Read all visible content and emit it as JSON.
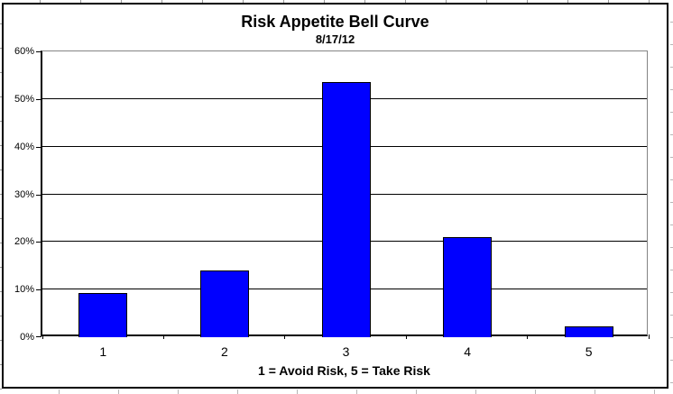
{
  "chart_data": {
    "type": "bar",
    "title": "Risk Appetite Bell Curve",
    "subtitle": "8/17/12",
    "xlabel": "1 = Avoid Risk, 5 = Take Risk",
    "ylabel": "",
    "categories": [
      "1",
      "2",
      "3",
      "4",
      "5"
    ],
    "values": [
      9.3,
      14,
      53.5,
      21,
      2.2
    ],
    "unit": "%",
    "ylim": [
      0,
      60
    ],
    "yticks": [
      {
        "label": "0%",
        "value": 0
      },
      {
        "label": "10%",
        "value": 10
      },
      {
        "label": "20%",
        "value": 20
      },
      {
        "label": "30%",
        "value": 30
      },
      {
        "label": "40%",
        "value": 40
      },
      {
        "label": "50%",
        "value": 50
      },
      {
        "label": "60%",
        "value": 60
      }
    ],
    "grid": true,
    "legend": false,
    "colors": {
      "bar_fill": "#0000FF",
      "bar_border": "#000000",
      "gridline": "#000000",
      "plot_border": "#848484",
      "chart_border": "#000000"
    }
  }
}
